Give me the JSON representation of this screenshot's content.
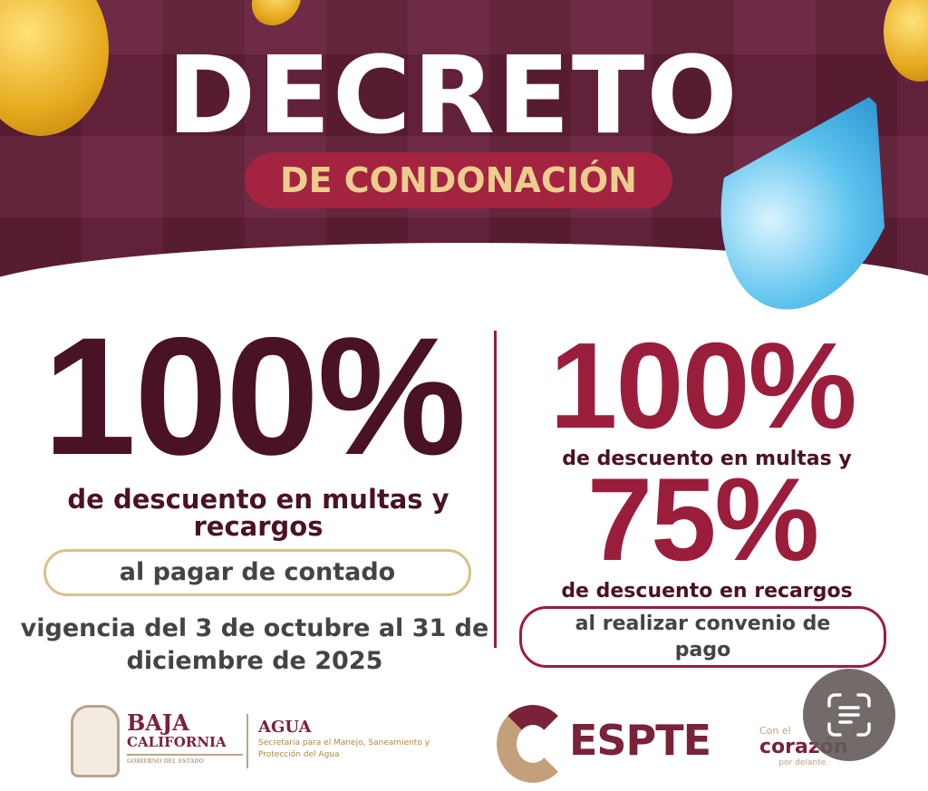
{
  "header": {
    "title": "DECRETO",
    "subtitle": "DE CONDONACIÓN"
  },
  "left": {
    "percent": "100%",
    "description": "de descuento en multas y recargos",
    "condition": "al pagar de contado",
    "validity": "vigencia del 3 de octubre al 31 de diciembre de 2025"
  },
  "right": {
    "percent_1": "100%",
    "description_1": "de descuento en multas y",
    "percent_2": "75%",
    "description_2": "de descuento en recargos",
    "condition": "al realizar convenio de pago"
  },
  "footer": {
    "logo_1_line1": "BAJA",
    "logo_1_line2": "CALIFORNIA",
    "logo_1_small": "GOBIERNO DEL ESTADO",
    "logo_2_title": "AGUA",
    "logo_2_sub": "Secretaría para el Manejo, Saneamiento y Protección del Agua",
    "logo_3": "ESPTE",
    "logo_4_top": "Con el",
    "logo_4_main": "corazón",
    "logo_4_bottom": "por delante."
  },
  "colors": {
    "maroon": "#5e1e36",
    "accent": "#9b1d3c",
    "gold": "#eccd8e",
    "drop": "#5cc2ee"
  },
  "icons": {
    "live_text": "live-text-scan-icon"
  }
}
